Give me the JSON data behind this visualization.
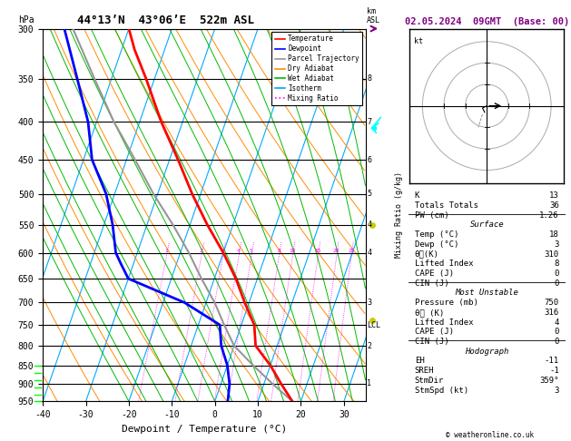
{
  "title_left": "44°13’N  43°06’E  522m ASL",
  "title_right": "02.05.2024  09GMT  (Base: 00)",
  "xlabel": "Dewpoint / Temperature (°C)",
  "ylabel_left": "hPa",
  "pressure_levels": [
    300,
    350,
    400,
    450,
    500,
    550,
    600,
    650,
    700,
    750,
    800,
    850,
    900,
    950
  ],
  "pressure_range": [
    300,
    950
  ],
  "temp_range": [
    -40,
    35
  ],
  "skew": 30,
  "temp_profile": {
    "pressure": [
      950,
      900,
      850,
      800,
      750,
      700,
      650,
      600,
      550,
      500,
      450,
      400,
      350,
      320,
      300
    ],
    "temperature": [
      18,
      14,
      10,
      5,
      3,
      -1,
      -5,
      -10,
      -16,
      -22,
      -28,
      -35,
      -42,
      -47,
      -50
    ]
  },
  "dewpoint_profile": {
    "pressure": [
      950,
      900,
      850,
      800,
      750,
      700,
      650,
      620,
      600,
      550,
      500,
      450,
      400,
      350,
      300
    ],
    "dewpoint": [
      3,
      2,
      0,
      -3,
      -5,
      -15,
      -30,
      -33,
      -35,
      -38,
      -42,
      -48,
      -52,
      -58,
      -65
    ]
  },
  "parcel_profile": {
    "pressure": [
      950,
      900,
      850,
      800,
      750,
      700,
      650,
      600,
      550,
      500,
      450,
      400,
      350,
      300
    ],
    "temperature": [
      18,
      12,
      6,
      0,
      -4,
      -8,
      -13,
      -18,
      -24,
      -31,
      -38,
      -46,
      -54,
      -63
    ]
  },
  "lcl_pressure": 750,
  "mixing_ratio_lines": [
    1,
    2,
    3,
    4,
    5,
    8,
    10,
    15,
    20,
    25
  ],
  "km_labels": {
    "pressures": [
      350,
      400,
      450,
      500,
      550,
      600,
      700,
      800,
      900
    ],
    "km_values": [
      8,
      7,
      6,
      5,
      4,
      4,
      3,
      2,
      1
    ]
  },
  "stats": {
    "K": 13,
    "Totals_Totals": 36,
    "PW_cm": 1.26,
    "Surface": {
      "Temp_C": 18,
      "Dewp_C": 3,
      "theta_e_K": 310,
      "Lifted_Index": 8,
      "CAPE_J": 0,
      "CIN_J": 0
    },
    "Most_Unstable": {
      "Pressure_mb": 750,
      "theta_e_K": 316,
      "Lifted_Index": 4,
      "CAPE_J": 0,
      "CIN_J": 0
    },
    "Hodograph": {
      "EH": -11,
      "SREH": -1,
      "StmDir": 359,
      "StmSpd_kt": 3
    }
  },
  "colors": {
    "temperature": "#ff0000",
    "dewpoint": "#0000ff",
    "parcel": "#969696",
    "dry_adiabat": "#ff8c00",
    "wet_adiabat": "#00bb00",
    "isotherm": "#00aaff",
    "mixing_ratio": "#ff00ff",
    "background": "#ffffff",
    "grid": "#000000"
  },
  "legend_items": [
    [
      "Temperature",
      "#ff0000",
      "solid"
    ],
    [
      "Dewpoint",
      "#0000ff",
      "solid"
    ],
    [
      "Parcel Trajectory",
      "#969696",
      "solid"
    ],
    [
      "Dry Adiabat",
      "#ff8c00",
      "solid"
    ],
    [
      "Wet Adiabat",
      "#00bb00",
      "solid"
    ],
    [
      "Isotherm",
      "#00aaff",
      "solid"
    ],
    [
      "Mixing Ratio",
      "#ff00ff",
      "dotted"
    ]
  ]
}
